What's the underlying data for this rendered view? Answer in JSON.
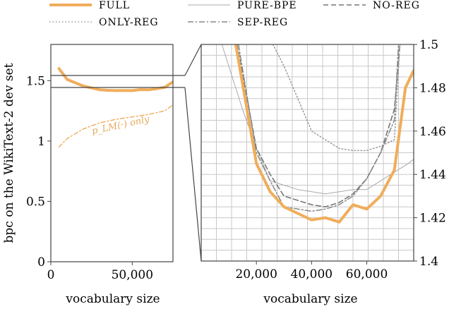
{
  "chart_data": {
    "type": "line",
    "legend": [
      {
        "label": "FULL",
        "color": "#f0ad5b",
        "dash": "",
        "width": 4
      },
      {
        "label": "PURE-BPE",
        "color": "#aaaaaa",
        "dash": "",
        "width": 1
      },
      {
        "label": "NO-REG",
        "color": "#777777",
        "dash": "7,4",
        "width": 1.6
      },
      {
        "label": "ONLY-REG",
        "color": "#999999",
        "dash": "1.5,3",
        "width": 1.5
      },
      {
        "label": "SEP-REG",
        "color": "#888888",
        "dash": "8,3,2,3",
        "width": 1.5
      }
    ],
    "left_panel": {
      "ylabel": "bpc on the WikiText-2 dev set",
      "xlabel": "vocabulary size",
      "xlim": [
        0,
        75000
      ],
      "ylim": [
        0,
        1.8
      ],
      "xticks": [
        {
          "value": 0,
          "label": "0"
        },
        {
          "value": 50000,
          "label": "50,000"
        }
      ],
      "yticks": [
        {
          "value": 0,
          "label": "0"
        },
        {
          "value": 0.5,
          "label": "0.5"
        },
        {
          "value": 1,
          "label": "1"
        },
        {
          "value": 1.5,
          "label": "1.5"
        }
      ],
      "zoom_band": [
        1.4,
        1.5
      ],
      "series": [
        {
          "name": "FULL",
          "x": [
            5000,
            10000,
            20000,
            30000,
            35000,
            40000,
            45000,
            50000,
            55000,
            60000,
            65000,
            70000,
            75000
          ],
          "y": [
            1.6,
            1.51,
            1.455,
            1.425,
            1.42,
            1.418,
            1.419,
            1.418,
            1.426,
            1.424,
            1.433,
            1.445,
            1.49
          ]
        },
        {
          "name": "annotation_line",
          "x": [
            5000,
            10000,
            20000,
            30000,
            40000,
            50000,
            60000,
            70000,
            75000
          ],
          "y": [
            0.95,
            1.02,
            1.1,
            1.15,
            1.18,
            1.2,
            1.22,
            1.25,
            1.3
          ]
        }
      ],
      "annotation": "p_LM(·) only"
    },
    "right_panel": {
      "xlabel": "vocabulary size",
      "xlim": [
        0,
        77000
      ],
      "ylim": [
        1.4,
        1.5
      ],
      "xticks": [
        {
          "value": 20000,
          "label": "20,000"
        },
        {
          "value": 40000,
          "label": "40,000"
        },
        {
          "value": 60000,
          "label": "60,000"
        }
      ],
      "yticks": [
        {
          "value": 1.4,
          "label": "1.4"
        },
        {
          "value": 1.42,
          "label": "1.42"
        },
        {
          "value": 1.44,
          "label": "1.44"
        },
        {
          "value": 1.46,
          "label": "1.46"
        },
        {
          "value": 1.48,
          "label": "1.48"
        },
        {
          "value": 1.5,
          "label": "1.5"
        }
      ],
      "series": [
        {
          "name": "PURE-BPE",
          "x": [
            0,
            7500,
            15000,
            20000,
            25000,
            30000,
            35000,
            40000,
            45000,
            50000,
            55000,
            60000,
            65000,
            70000,
            75000,
            77000
          ],
          "y": [
            1.51,
            1.5,
            1.47,
            1.452,
            1.437,
            1.435,
            1.433,
            1.432,
            1.431,
            1.432,
            1.433,
            1.433,
            1.437,
            1.441,
            1.445,
            1.447
          ]
        },
        {
          "name": "NO-REG",
          "x": [
            13000,
            20000,
            25000,
            30000,
            35000,
            40000,
            45000,
            50000,
            55000,
            60000,
            65000,
            70000,
            72000
          ],
          "y": [
            1.5,
            1.452,
            1.44,
            1.43,
            1.428,
            1.426,
            1.425,
            1.427,
            1.431,
            1.438,
            1.45,
            1.47,
            1.5
          ]
        },
        {
          "name": "ONLY-REG",
          "x": [
            26000,
            30000,
            35000,
            40000,
            45000,
            50000,
            55000,
            60000,
            65000,
            70000,
            72000
          ],
          "y": [
            1.5,
            1.49,
            1.475,
            1.46,
            1.456,
            1.452,
            1.451,
            1.451,
            1.453,
            1.456,
            1.5
          ]
        },
        {
          "name": "SEP-REG",
          "x": [
            13500,
            20000,
            25000,
            30000,
            35000,
            40000,
            45000,
            50000,
            55000,
            60000,
            65000,
            70000,
            71500
          ],
          "y": [
            1.5,
            1.45,
            1.437,
            1.425,
            1.424,
            1.423,
            1.424,
            1.426,
            1.43,
            1.438,
            1.45,
            1.465,
            1.5
          ]
        },
        {
          "name": "FULL",
          "x": [
            12500,
            20000,
            25000,
            30000,
            35000,
            40000,
            45000,
            50000,
            55000,
            60000,
            65000,
            70000,
            74000,
            77000
          ],
          "y": [
            1.5,
            1.445,
            1.432,
            1.425,
            1.422,
            1.419,
            1.42,
            1.418,
            1.426,
            1.424,
            1.43,
            1.442,
            1.48,
            1.488
          ]
        }
      ]
    }
  }
}
